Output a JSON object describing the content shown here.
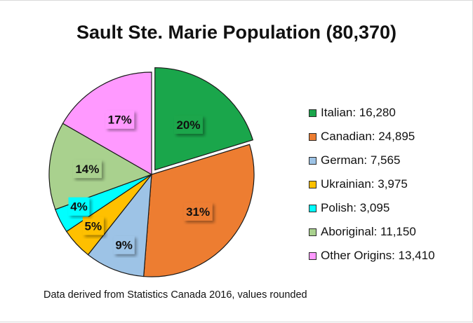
{
  "chart_data": {
    "type": "pie",
    "title": "Sault Ste. Marie Population (80,370)",
    "total": 80370,
    "slices": [
      {
        "name": "Italian",
        "value": 16280,
        "legend": "Italian: 16,280",
        "label": "20%",
        "color": "#1aa64b",
        "exploded": true
      },
      {
        "name": "Canadian",
        "value": 24895,
        "legend": "Canadian: 24,895",
        "label": "31%",
        "color": "#ed7d31",
        "exploded": false
      },
      {
        "name": "German",
        "value": 7565,
        "legend": "German: 7,565",
        "label": "9%",
        "color": "#9dc3e6",
        "exploded": false
      },
      {
        "name": "Ukrainian",
        "value": 3975,
        "legend": "Ukrainian: 3,975",
        "label": "5%",
        "color": "#ffc000",
        "exploded": false
      },
      {
        "name": "Polish",
        "value": 3095,
        "legend": "Polish: 3,095",
        "label": "4%",
        "color": "#00ffff",
        "exploded": false
      },
      {
        "name": "Aboriginal",
        "value": 11150,
        "legend": "Aboriginal: 11,150",
        "label": "14%",
        "color": "#a9d18e",
        "exploded": false
      },
      {
        "name": "Other Origins",
        "value": 13410,
        "legend": "Other Origins: 13,410",
        "label": "17%",
        "color": "#ff99ff",
        "exploded": false
      }
    ],
    "legend_position": "right",
    "source_note": "Data derived from Statistics Canada 2016, values rounded"
  }
}
